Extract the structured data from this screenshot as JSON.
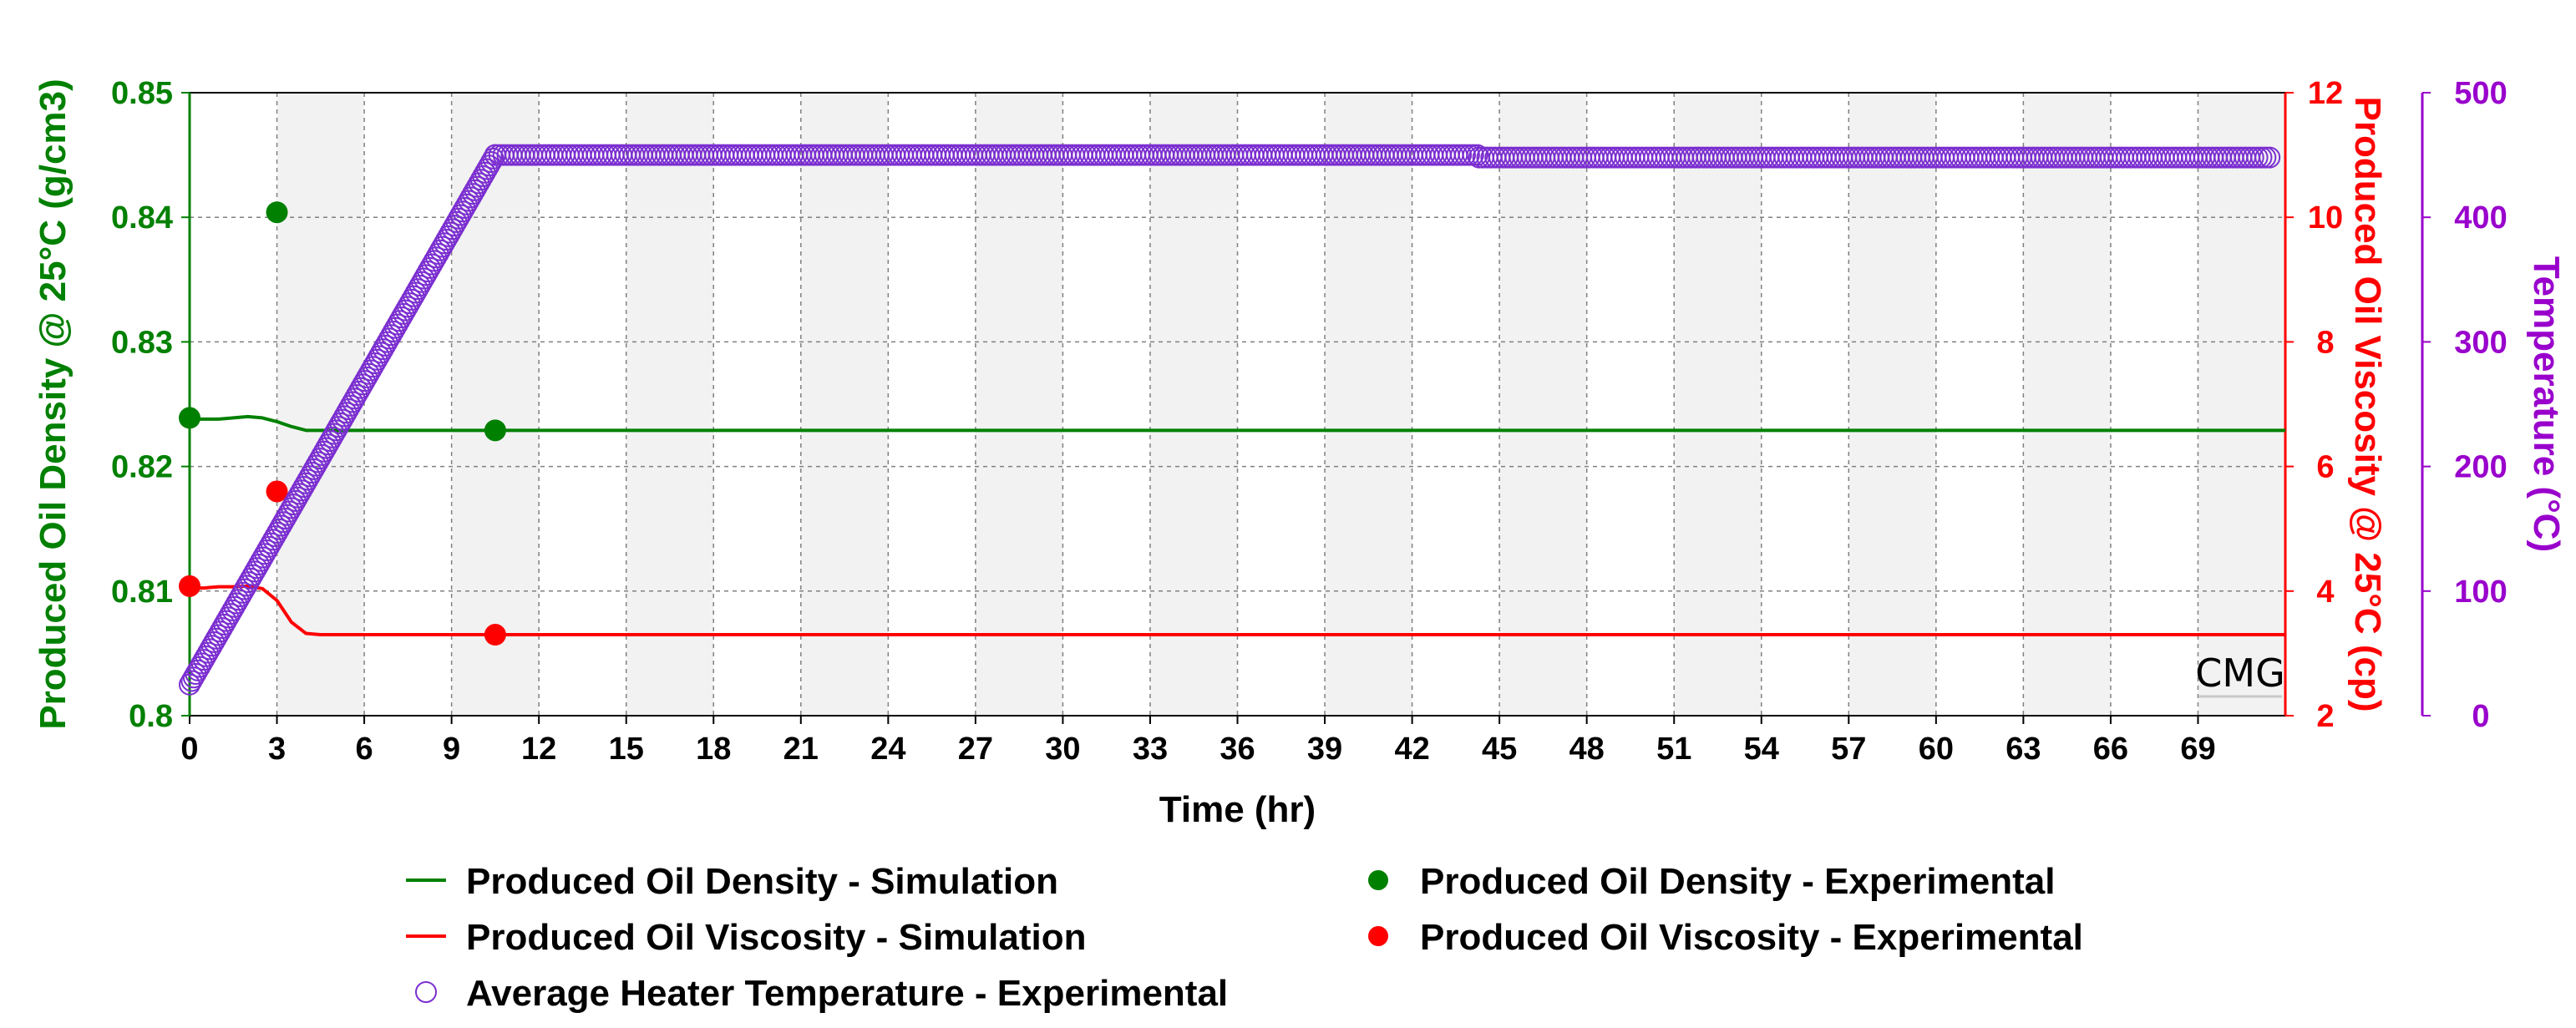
{
  "colors": {
    "density": "#008000",
    "viscosity": "#ff0000",
    "temperature": "#9900cc",
    "temperature_marker": "#7b2fd0",
    "grid": "#808080",
    "band": "#f2f2f2",
    "watermark": "#c8c8c8"
  },
  "chart_data": {
    "type": "line",
    "xlabel": "Time (hr)",
    "x_ticks": [
      "0",
      "3",
      "6",
      "9",
      "12",
      "15",
      "18",
      "21",
      "24",
      "27",
      "30",
      "33",
      "36",
      "39",
      "42",
      "45",
      "48",
      "51",
      "54",
      "57",
      "60",
      "63",
      "66",
      "69"
    ],
    "xlim": [
      0,
      72
    ],
    "axes": {
      "left": {
        "label": "Produced Oil Density @ 25°C (g/cm3)",
        "ylim": [
          0.8,
          0.85
        ],
        "ticks": [
          "0.8",
          "0.81",
          "0.82",
          "0.83",
          "0.84",
          "0.85"
        ]
      },
      "right1": {
        "label": "Produced Oil Viscosity @ 25°C (cp)",
        "ylim": [
          2,
          12
        ],
        "ticks": [
          "2",
          "4",
          "6",
          "8",
          "10",
          "12"
        ]
      },
      "right2": {
        "label": "Temperature (°C)",
        "ylim": [
          0,
          500
        ],
        "ticks": [
          "0",
          "100",
          "200",
          "300",
          "400",
          "500"
        ]
      }
    },
    "series": [
      {
        "name": "Produced Oil Density - Simulation",
        "style": "line",
        "axis": "left",
        "x": [
          0,
          0.5,
          1,
          1.5,
          2,
          2.5,
          3,
          3.5,
          4,
          4.5,
          5,
          10.5,
          72
        ],
        "y": [
          0.8238,
          0.8238,
          0.8238,
          0.8239,
          0.824,
          0.8239,
          0.8236,
          0.8232,
          0.8229,
          0.8229,
          0.8229,
          0.8229,
          0.8229
        ]
      },
      {
        "name": "Produced Oil Density - Experimental",
        "style": "marker",
        "axis": "left",
        "x": [
          0,
          3,
          10.5
        ],
        "y": [
          0.8239,
          0.8404,
          0.8229
        ]
      },
      {
        "name": "Produced Oil Viscosity - Simulation",
        "style": "line",
        "axis": "right1",
        "x": [
          0,
          0.5,
          1,
          1.5,
          2,
          2.5,
          3,
          3.5,
          4,
          4.5,
          5,
          10.5,
          72
        ],
        "y": [
          4.05,
          4.05,
          4.07,
          4.07,
          4.08,
          4.04,
          3.85,
          3.5,
          3.32,
          3.3,
          3.3,
          3.3,
          3.3
        ]
      },
      {
        "name": "Produced Oil Viscosity - Experimental",
        "style": "marker",
        "axis": "right1",
        "x": [
          0,
          3,
          10.5
        ],
        "y": [
          4.08,
          5.6,
          3.3
        ]
      },
      {
        "name": "Average Heater Temperature - Experimental",
        "style": "hollow-marker",
        "axis": "right2",
        "ramp": {
          "x_start": 0,
          "y_start": 25,
          "x_end": 10.5,
          "y_end": 450,
          "step": 0.07
        },
        "plateau": [
          {
            "x_start": 10.5,
            "x_end": 44.3,
            "y": 450
          },
          {
            "x_start": 44.3,
            "x_end": 71.5,
            "y": 448
          }
        ]
      }
    ],
    "legend": [
      "Produced Oil Density - Simulation",
      "Produced Oil Density - Experimental",
      "Produced Oil Viscosity - Simulation",
      "Produced Oil Viscosity - Experimental",
      "Average Heater Temperature - Experimental"
    ]
  },
  "watermark": "CMG"
}
